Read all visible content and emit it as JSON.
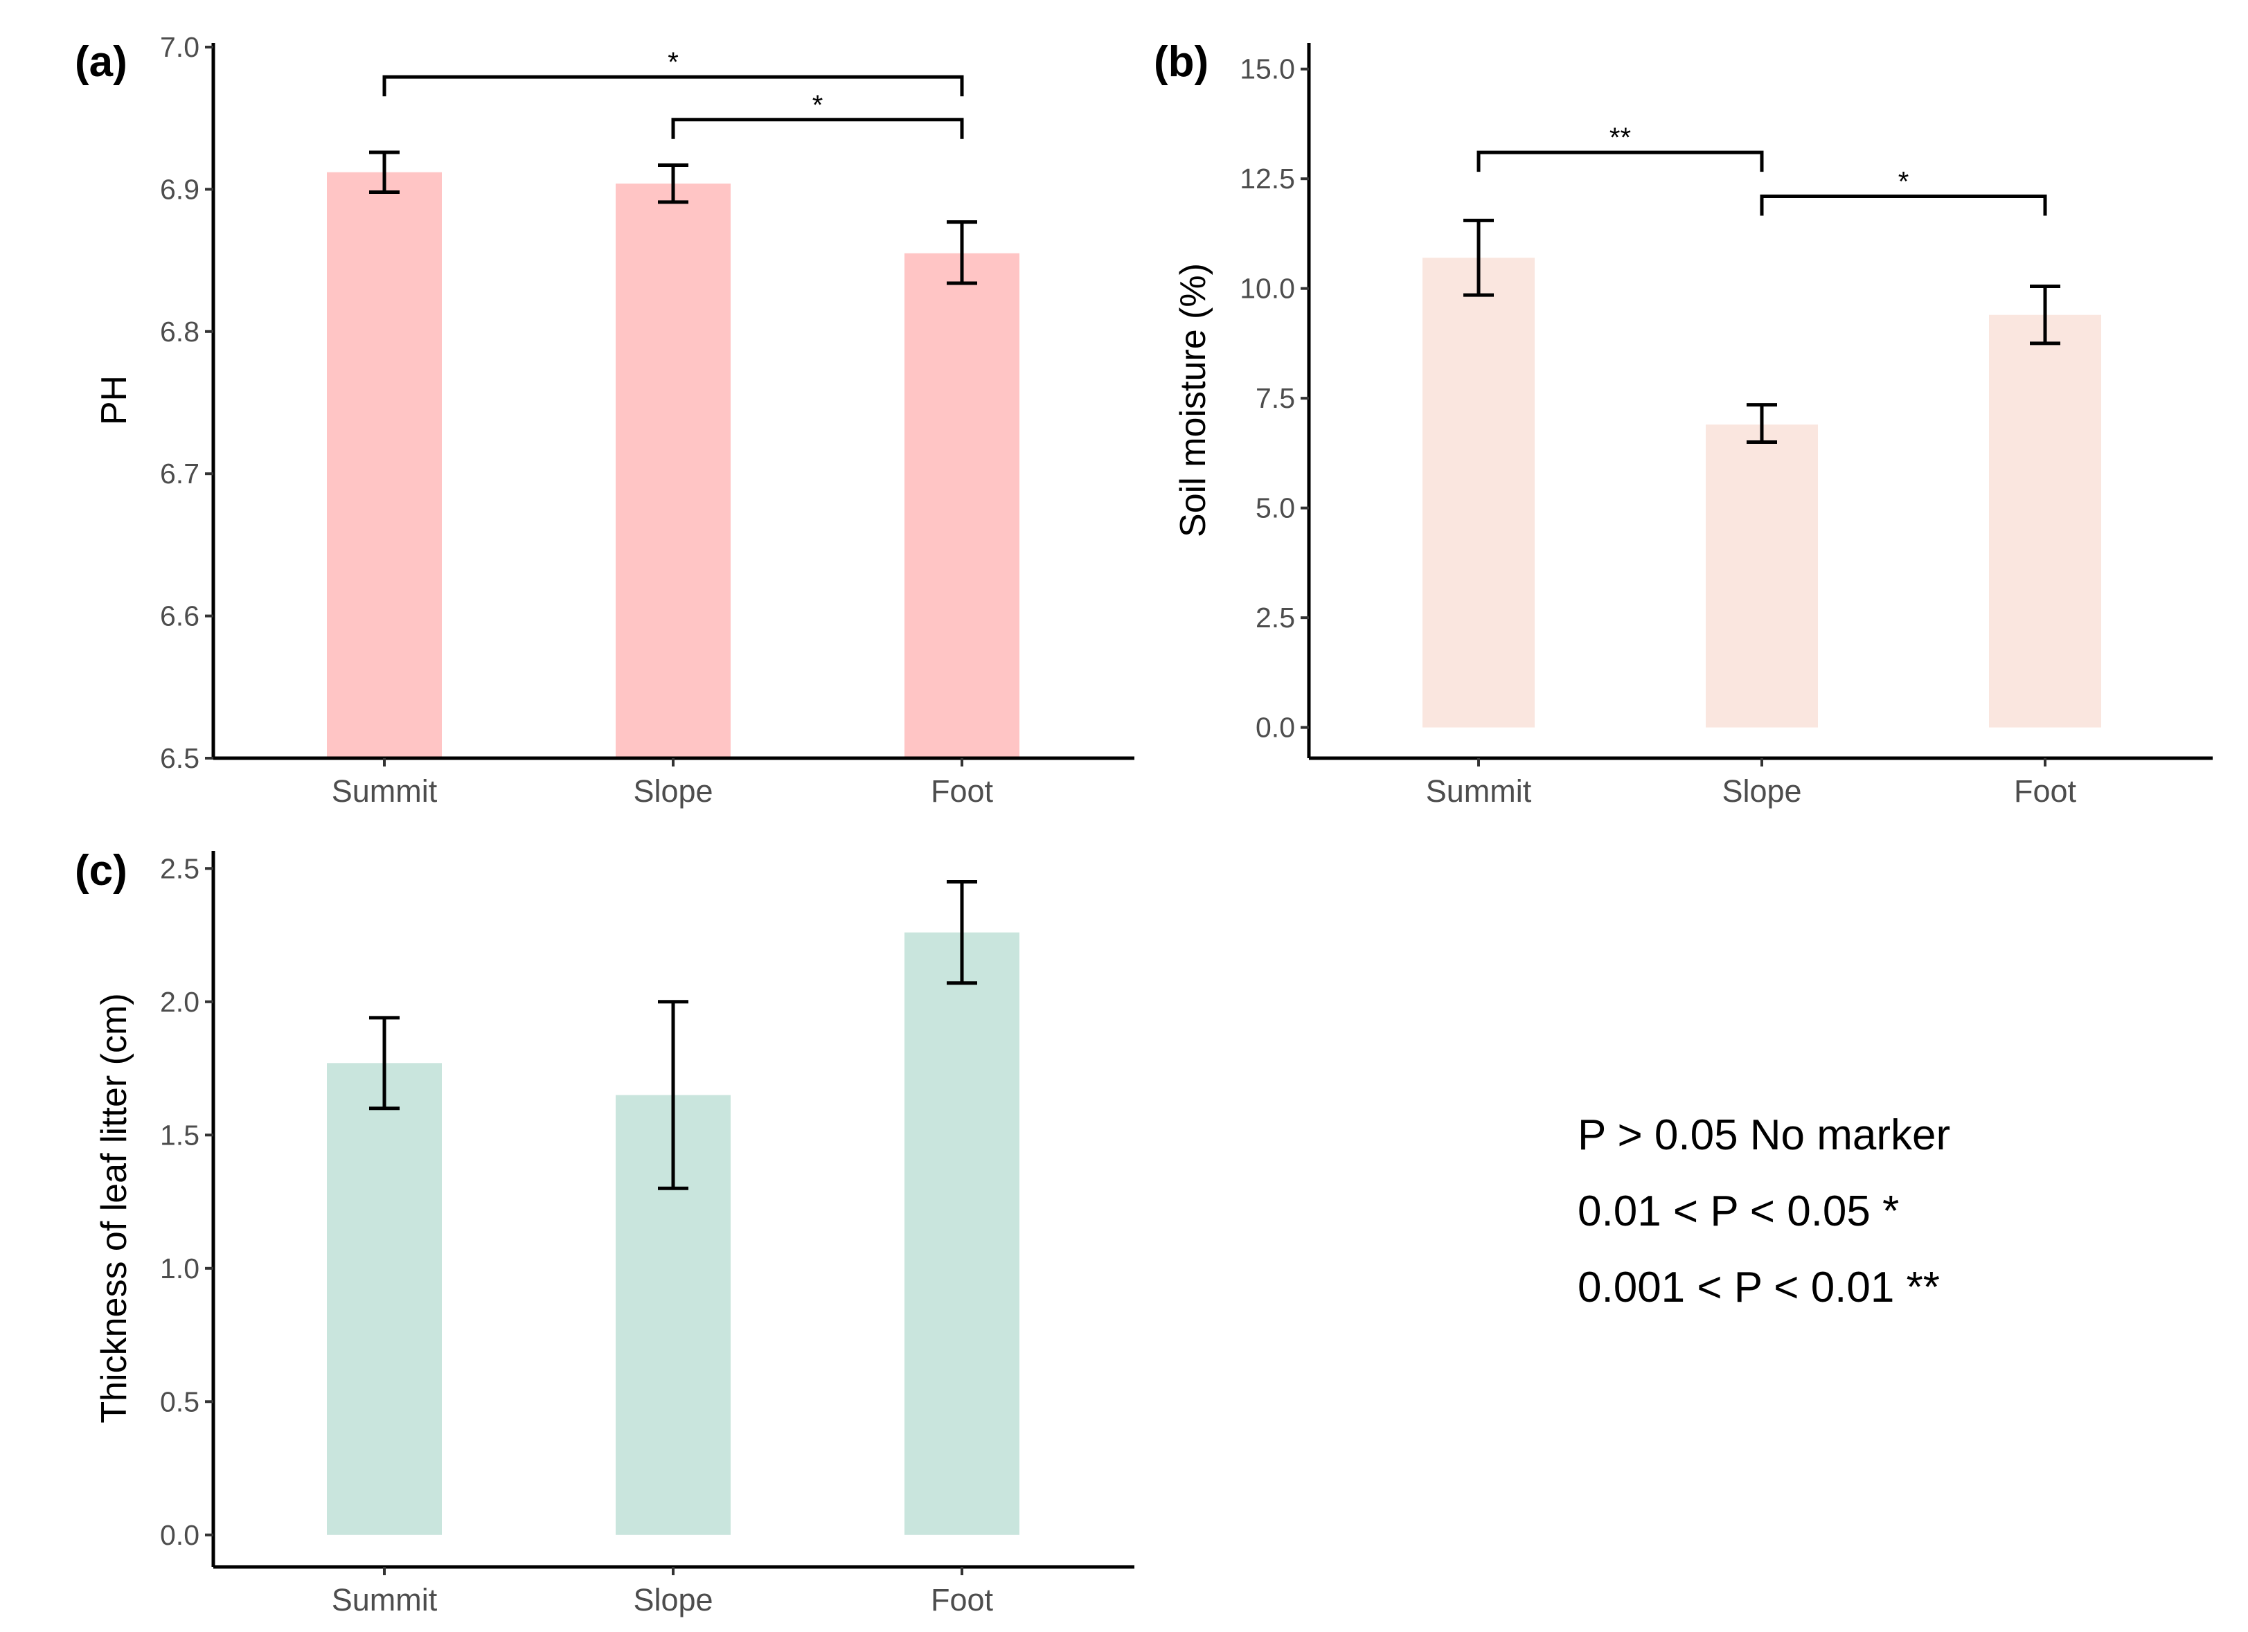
{
  "chart_data": [
    {
      "id": "a",
      "type": "bar",
      "panel_label": "(a)",
      "title": "",
      "xlabel": "",
      "ylabel": "PH",
      "categories": [
        "Summit",
        "Slope",
        "Foot"
      ],
      "values": [
        6.912,
        6.904,
        6.855
      ],
      "error_low": [
        6.898,
        6.891,
        6.834
      ],
      "error_high": [
        6.926,
        6.917,
        6.877
      ],
      "ylim": [
        6.5,
        7.0
      ],
      "yticks": [
        6.5,
        6.6,
        6.7,
        6.8,
        6.9,
        7.0
      ],
      "ytick_labels": [
        "6.5",
        "6.6",
        "6.7",
        "6.8",
        "6.9",
        "7.0"
      ],
      "bar_color": "#ffc5c5",
      "grid": false,
      "significance": [
        {
          "from": 0,
          "to": 2,
          "label": "*",
          "level": 6.979
        },
        {
          "from": 1,
          "to": 2,
          "label": "*",
          "level": 6.949
        }
      ]
    },
    {
      "id": "b",
      "type": "bar",
      "panel_label": "(b)",
      "title": "",
      "xlabel": "",
      "ylabel": "Soil moisture (%)",
      "categories": [
        "Summit",
        "Slope",
        "Foot"
      ],
      "values": [
        10.7,
        6.9,
        9.4
      ],
      "error_low": [
        9.85,
        6.5,
        8.75
      ],
      "error_high": [
        11.55,
        7.35,
        10.05
      ],
      "ylim": [
        -0.7,
        15.5
      ],
      "yticks": [
        0.0,
        2.5,
        5.0,
        7.5,
        10.0,
        12.5,
        15.0
      ],
      "ytick_labels": [
        "0.0",
        "2.5",
        "5.0",
        "7.5",
        "10.0",
        "12.5",
        "15.0"
      ],
      "bar_color": "#fae6df",
      "grid": false,
      "significance": [
        {
          "from": 0,
          "to": 1,
          "label": "**",
          "level": 13.1
        },
        {
          "from": 1,
          "to": 2,
          "label": "*",
          "level": 12.1
        }
      ]
    },
    {
      "id": "c",
      "type": "bar",
      "panel_label": "(c)",
      "title": "",
      "xlabel": "",
      "ylabel": "Thickness of leaf litter (cm)",
      "categories": [
        "Summit",
        "Slope",
        "Foot"
      ],
      "values": [
        1.77,
        1.65,
        2.26
      ],
      "error_low": [
        1.6,
        1.3,
        2.07
      ],
      "error_high": [
        1.94,
        2.0,
        2.45
      ],
      "ylim": [
        -0.12,
        2.55
      ],
      "yticks": [
        0.0,
        0.5,
        1.0,
        1.5,
        2.0,
        2.5
      ],
      "ytick_labels": [
        "0.0",
        "0.5",
        "1.0",
        "1.5",
        "2.0",
        "2.5"
      ],
      "bar_color": "#c9e5dd",
      "grid": false,
      "significance": []
    }
  ],
  "legend_notes": [
    "P > 0.05 No marker",
    "0.01 < P < 0.05 *",
    "0.001 < P < 0.01 **"
  ]
}
